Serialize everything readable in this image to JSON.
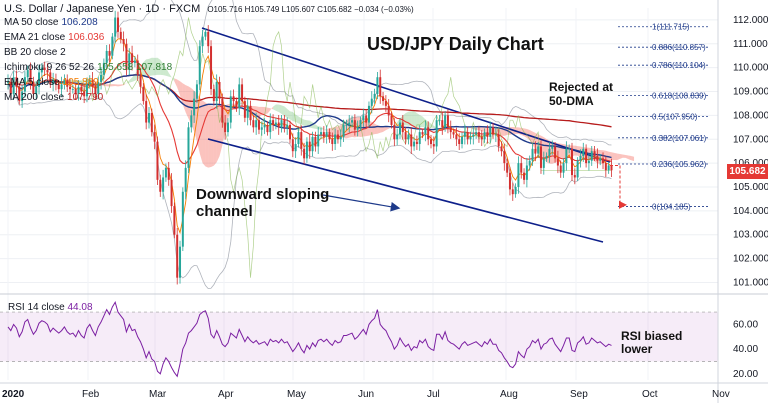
{
  "header": {
    "symbol": "U.S. Dollar / Japanese Yen · 1D · FXCM",
    "ohlc": "O105.716 H105.749 L105.607 C105.682 −0.034 (−0.03%)"
  },
  "indicators": [
    {
      "label": "MA 50 close",
      "value": "106.208",
      "color": "#1e3a8a"
    },
    {
      "label": "EMA 21 close",
      "value": "106.036",
      "color": "#e53935"
    },
    {
      "label": "BB 20 close 2",
      "value": "",
      "color": "#9e9e9e"
    },
    {
      "label": "Ichimoku 9 26 52 26",
      "value": "105.658  107.818",
      "color": "#2e7d32"
    },
    {
      "label": "EMA 5 close",
      "value": "105.889",
      "color": "#f57c00"
    },
    {
      "label": "MA 200 close",
      "value": "107.790",
      "color": "#b71c1c"
    }
  ],
  "annotations": {
    "title": "USD/JPY Daily Chart",
    "rejected": [
      "Rejected at",
      "50-DMA"
    ],
    "channel": [
      "Downward sloping",
      "channel"
    ],
    "rsi_note": [
      "RSI biased",
      "lower"
    ]
  },
  "price_badge": {
    "value": "105.682",
    "color": "#e53935"
  },
  "rsi": {
    "label": "RSI 14 close",
    "value": "44.08"
  },
  "chart_data": {
    "type": "candlestick",
    "price_axis": {
      "ticks": [
        101.0,
        102.0,
        103.0,
        104.0,
        105.0,
        106.0,
        107.0,
        108.0,
        109.0,
        110.0,
        111.0,
        112.0
      ],
      "range": [
        100.6,
        112.5
      ]
    },
    "rsi_axis": {
      "ticks": [
        20.0,
        40.0,
        60.0
      ],
      "range": [
        15,
        83
      ],
      "bands": [
        30,
        70
      ]
    },
    "x_labels": [
      "2020",
      "Feb",
      "Mar",
      "Apr",
      "May",
      "Jun",
      "Jul",
      "Aug",
      "Sep",
      "Oct",
      "Nov"
    ],
    "close": [
      109.4,
      108.9,
      109.6,
      109.2,
      108.6,
      109.0,
      109.6,
      109.9,
      109.4,
      108.9,
      109.2,
      109.8,
      110.0,
      109.9,
      109.8,
      109.3,
      109.5,
      109.3,
      109.1,
      109.3,
      109.5,
      109.2,
      109.1,
      109.1,
      108.9,
      109.2,
      109.0,
      108.8,
      109.3,
      109.5,
      109.2,
      108.9,
      109.4,
      109.7,
      110.2,
      110.7,
      110.5,
      111.3,
      112.1,
      111.5,
      111.2,
      111.0,
      109.9,
      110.6,
      110.2,
      110.3,
      109.7,
      109.2,
      108.6,
      107.7,
      108.1,
      107.3,
      106.9,
      105.3,
      104.8,
      105.4,
      105.8,
      105.3,
      104.2,
      103.0,
      101.2,
      102.5,
      104.8,
      105.8,
      107.5,
      108.0,
      108.7,
      109.3,
      110.9,
      111.3,
      111.5,
      110.9,
      109.1,
      108.6,
      109.4,
      108.7,
      107.7,
      107.3,
      107.7,
      108.8,
      108.6,
      108.3,
      109.3,
      108.6,
      107.9,
      108.4,
      107.8,
      107.5,
      107.8,
      107.4,
      107.5,
      107.6,
      107.3,
      107.8,
      107.6,
      107.7,
      107.5,
      107.8,
      107.5,
      107.6,
      107.0,
      106.5,
      106.8,
      107.3,
      106.6,
      106.2,
      106.9,
      106.5,
      107.1,
      106.7,
      107.2,
      107.3,
      107.1,
      107.3,
      107.0,
      106.8,
      107.2,
      107.0,
      107.1,
      107.6,
      107.6,
      107.7,
      107.8,
      107.4,
      107.5,
      107.8,
      108.0,
      107.7,
      108.4,
      108.7,
      108.9,
      109.6,
      108.8,
      108.6,
      108.4,
      108.0,
      107.6,
      107.0,
      107.2,
      107.7,
      107.3,
      107.0,
      107.2,
      106.7,
      106.9,
      106.8,
      107.3,
      107.2,
      107.5,
      107.0,
      106.8,
      106.7,
      107.8,
      107.8,
      107.5,
      108.0,
      107.5,
      107.3,
      107.2,
      107.0,
      106.8,
      107.1,
      107.3,
      107.0,
      107.1,
      107.2,
      107.3,
      107.1,
      107.0,
      107.3,
      107.1,
      107.5,
      107.2,
      107.2,
      106.7,
      106.5,
      106.0,
      105.6,
      104.9,
      104.7,
      105.0,
      106.0,
      105.6,
      105.3,
      105.9,
      106.1,
      106.6,
      106.4,
      106.7,
      105.8,
      106.2,
      106.3,
      106.6,
      106.7,
      106.2,
      105.9,
      105.6,
      106.0,
      106.6,
      106.6,
      105.5,
      105.4,
      106.1,
      106.3,
      106.6,
      106.0,
      106.1,
      106.5,
      106.3,
      106.1,
      106.2,
      106.0,
      105.7,
      105.9,
      105.7
    ],
    "levels": {
      "ma200": 107.79,
      "ema21": 106.036,
      "ma50": 106.208,
      "last": 105.682,
      "fib_low": 104.185
    }
  },
  "fib_levels": [
    {
      "ratio": "1",
      "price": 111.715,
      "label": "1(111.715)"
    },
    {
      "ratio": "0.886",
      "price": 110.857,
      "label": "0.886(110.857)"
    },
    {
      "ratio": "0.786",
      "price": 110.104,
      "label": "0.786(110.104)"
    },
    {
      "ratio": "0.618",
      "price": 108.839,
      "label": "0.618(108.839)"
    },
    {
      "ratio": "0.5",
      "price": 107.95,
      "label": "0.5(107.950)"
    },
    {
      "ratio": "0.382",
      "price": 107.061,
      "label": "0.382(107.061)"
    },
    {
      "ratio": "0.236",
      "price": 105.962,
      "label": "0.236(105.962)"
    },
    {
      "ratio": "0",
      "price": 104.185,
      "label": "0(104.185)"
    }
  ],
  "rsi_data": [
    58,
    55,
    60,
    57,
    50,
    54,
    62,
    64,
    57,
    52,
    55,
    61,
    63,
    62,
    60,
    54,
    57,
    55,
    53,
    55,
    58,
    54,
    52,
    53,
    50,
    55,
    51,
    49,
    57,
    60,
    55,
    51,
    58,
    62,
    67,
    72,
    68,
    74,
    78,
    70,
    67,
    64,
    54,
    60,
    55,
    56,
    50,
    46,
    40,
    33,
    38,
    32,
    30,
    22,
    20,
    28,
    33,
    30,
    25,
    21,
    18,
    28,
    40,
    45,
    53,
    55,
    58,
    61,
    68,
    70,
    71,
    65,
    52,
    49,
    55,
    50,
    44,
    42,
    45,
    53,
    51,
    49,
    56,
    51,
    46,
    50,
    47,
    45,
    47,
    44,
    45,
    46,
    43,
    48,
    46,
    47,
    45,
    48,
    45,
    46,
    42,
    38,
    41,
    45,
    40,
    37,
    43,
    40,
    45,
    42,
    47,
    48,
    46,
    48,
    45,
    43,
    47,
    45,
    46,
    51,
    51,
    52,
    53,
    48,
    50,
    53,
    56,
    52,
    60,
    63,
    65,
    72,
    60,
    57,
    55,
    50,
    46,
    40,
    43,
    49,
    45,
    42,
    44,
    39,
    42,
    41,
    47,
    45,
    48,
    42,
    40,
    39,
    52,
    52,
    48,
    54,
    47,
    45,
    44,
    42,
    40,
    44,
    46,
    43,
    44,
    45,
    46,
    44,
    42,
    46,
    44,
    48,
    44,
    44,
    39,
    37,
    33,
    30,
    26,
    25,
    28,
    38,
    35,
    33,
    40,
    42,
    47,
    45,
    48,
    40,
    44,
    45,
    48,
    49,
    44,
    41,
    38,
    43,
    49,
    49,
    39,
    38,
    45,
    47,
    50,
    44,
    45,
    49,
    47,
    45,
    46,
    44,
    42,
    44,
    43
  ]
}
